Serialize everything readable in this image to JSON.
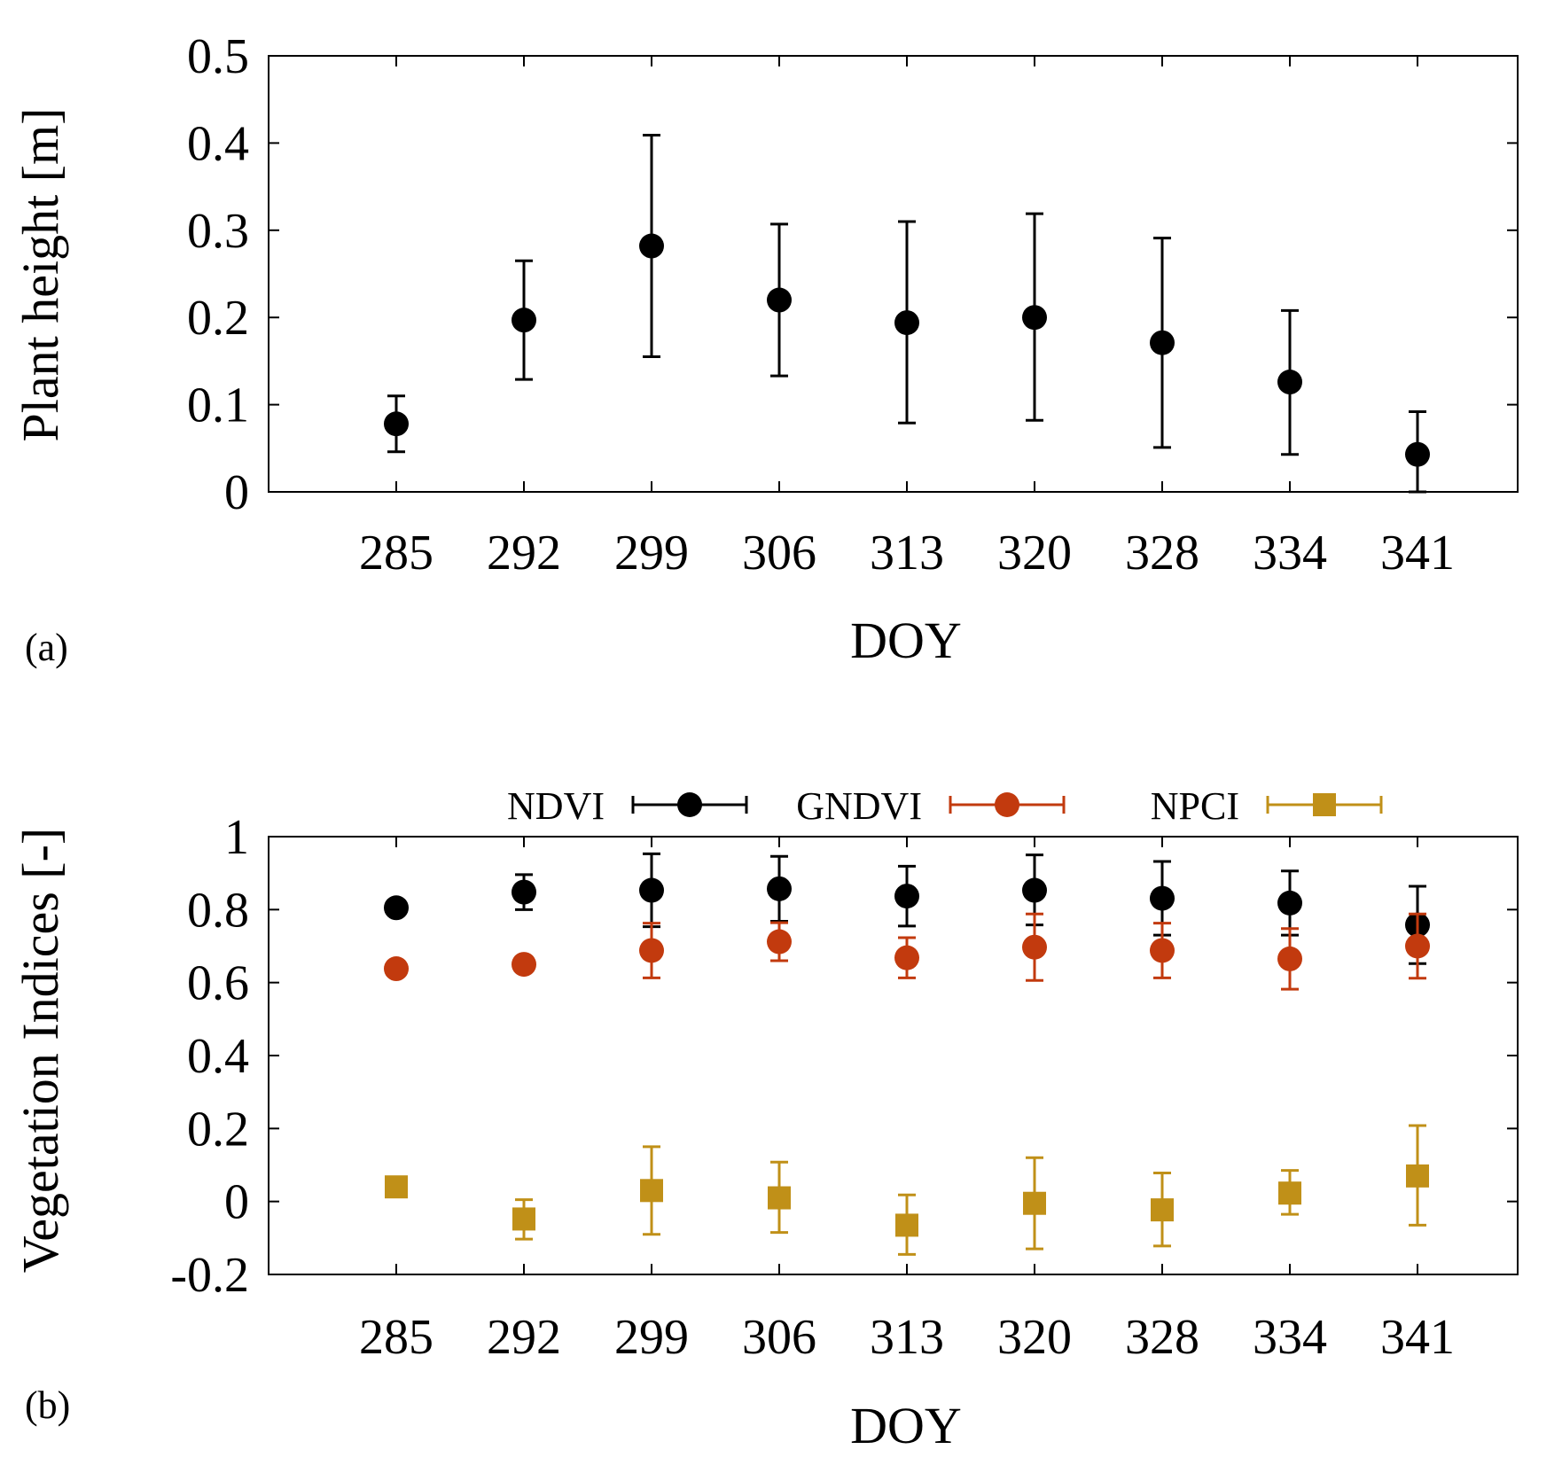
{
  "chart_data": [
    {
      "type": "scatter",
      "panel_label": "(a)",
      "xlabel": "DOY",
      "ylabel": "Plant height [m]",
      "categories": [
        "285",
        "292",
        "299",
        "306",
        "313",
        "320",
        "328",
        "334",
        "341"
      ],
      "ylim": [
        0,
        0.5
      ],
      "yticks": [
        0,
        0.1,
        0.2,
        0.3,
        0.4,
        0.5
      ],
      "ytick_labels": [
        "0",
        "0.1",
        "0.2",
        "0.3",
        "0.4",
        "0.5"
      ],
      "grid": false,
      "series": [
        {
          "color": "#000000",
          "marker": "circle",
          "values": [
            0.078,
            0.197,
            0.282,
            0.22,
            0.194,
            0.2,
            0.171,
            0.126,
            0.043
          ],
          "err_low": [
            0.046,
            0.129,
            0.155,
            0.133,
            0.079,
            0.082,
            0.051,
            0.043,
            0.0
          ],
          "err_high": [
            0.11,
            0.265,
            0.409,
            0.307,
            0.31,
            0.319,
            0.291,
            0.208,
            0.092
          ]
        }
      ]
    },
    {
      "type": "scatter",
      "panel_label": "(b)",
      "xlabel": "DOY",
      "ylabel": "Vegetation Indices [-]",
      "categories": [
        "285",
        "292",
        "299",
        "306",
        "313",
        "320",
        "328",
        "334",
        "341"
      ],
      "ylim": [
        -0.2,
        1.0
      ],
      "yticks": [
        -0.2,
        0,
        0.2,
        0.4,
        0.6,
        0.8,
        1.0
      ],
      "ytick_labels": [
        "-0.2",
        "0",
        "0.2",
        "0.4",
        "0.6",
        "0.8",
        "1"
      ],
      "grid": false,
      "legend": "top, outside plot, horizontal",
      "series": [
        {
          "name": "NDVI",
          "color": "#000000",
          "marker": "circle",
          "values": [
            0.805,
            0.848,
            0.853,
            0.857,
            0.837,
            0.853,
            0.831,
            0.818,
            0.758
          ],
          "err_low": [
            0.785,
            0.8,
            0.753,
            0.768,
            0.755,
            0.758,
            0.73,
            0.73,
            0.652
          ],
          "err_high": [
            0.825,
            0.896,
            0.953,
            0.946,
            0.919,
            0.95,
            0.932,
            0.906,
            0.864
          ]
        },
        {
          "name": "GNDVI",
          "color": "#c23a0e",
          "marker": "circle",
          "values": [
            0.638,
            0.65,
            0.688,
            0.712,
            0.668,
            0.697,
            0.688,
            0.665,
            0.7
          ],
          "err_low": [
            0.628,
            0.64,
            0.613,
            0.66,
            0.613,
            0.606,
            0.613,
            0.582,
            0.612
          ],
          "err_high": [
            0.648,
            0.66,
            0.763,
            0.764,
            0.723,
            0.788,
            0.763,
            0.748,
            0.788
          ]
        },
        {
          "name": "NPCI",
          "color": "#c09018",
          "marker": "square",
          "values": [
            0.04,
            -0.048,
            0.03,
            0.01,
            -0.065,
            -0.005,
            -0.023,
            0.023,
            0.07
          ],
          "err_low": [
            0.03,
            -0.103,
            -0.09,
            -0.085,
            -0.145,
            -0.13,
            -0.122,
            -0.035,
            -0.065
          ],
          "err_high": [
            0.05,
            0.005,
            0.15,
            0.108,
            0.018,
            0.12,
            0.078,
            0.085,
            0.208
          ]
        }
      ]
    }
  ]
}
